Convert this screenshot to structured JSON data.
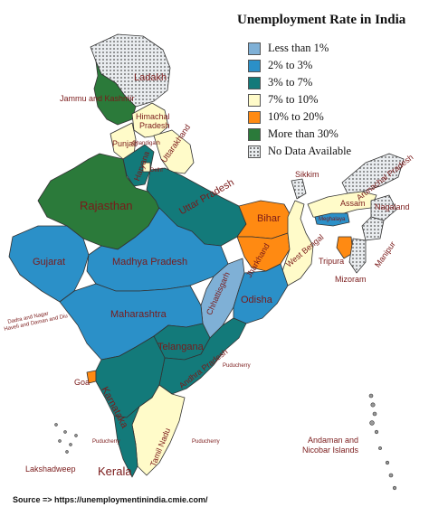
{
  "title": "Unemployment Rate in India",
  "legend": [
    {
      "label": "Less than 1%",
      "color": "#7fb0d6",
      "key": "lt1"
    },
    {
      "label": "2% to 3%",
      "color": "#2b90c8",
      "key": "r2_3"
    },
    {
      "label": "3% to 7%",
      "color": "#137a7a",
      "key": "r3_7"
    },
    {
      "label": "7% to 10%",
      "color": "#fffbc9",
      "key": "r7_10"
    },
    {
      "label": "10% to 20%",
      "color": "#ff8a12",
      "key": "r10_20"
    },
    {
      "label": "More than 30%",
      "color": "#2b7a3a",
      "key": "gt30"
    },
    {
      "label": "No Data Available",
      "color": "#e9ecef",
      "key": "nodata"
    }
  ],
  "labels": {
    "ladakh": "Ladakh",
    "jk": "Jammu and Kashmir",
    "himachal_1": "Himachal",
    "himachal_2": "Pradesh",
    "punjab": "Punjab",
    "chandigarh": "Chandigarh",
    "uttarakhand": "Uttarakhand",
    "haryana": "Haryana",
    "delhi": "Delhi",
    "rajasthan": "Rajasthan",
    "up": "Uttar Pradesh",
    "sikkim": "Sikkim",
    "arunachal": "Arunachal Pradesh",
    "assam": "Assam",
    "nagaland": "Nagaland",
    "meghalaya": "Meghalaya",
    "manipur": "Manipur",
    "tripura": "Tripura",
    "mizoram": "Mizoram",
    "bihar": "Bihar",
    "jharkhand": "Jharkhand",
    "wb": "West Bengal",
    "gujarat": "Gujarat",
    "mp": "Madhya Pradesh",
    "dnh_1": "Dadra and Nagar",
    "dnh_2": "Haveli and Daman and Diu",
    "chhattisgarh": "Chhattisgarh",
    "odisha": "Odisha",
    "maharashtra": "Maharashtra",
    "telangana": "Telangana",
    "ap": "Andhra Pradesh",
    "goa": "Goa",
    "karnataka": "Karnataka",
    "puducherry": "Puducherry",
    "tn": "Tamil Nadu",
    "kerala": "Kerala",
    "lakshadweep": "Lakshadweep",
    "andaman_1": "Andaman and",
    "andaman_2": "Nicobar Islands"
  },
  "states": {
    "ladakh": "nodata",
    "jk": "gt30",
    "himachal": "r7_10",
    "punjab": "r7_10",
    "uttarakhand": "r7_10",
    "haryana": "r3_7",
    "delhi": "r7_10",
    "rajasthan": "gt30",
    "up": "r3_7",
    "bihar": "r10_20",
    "jharkhand": "r10_20",
    "wb": "r7_10",
    "sikkim": "nodata",
    "arunachal": "nodata",
    "assam": "r7_10",
    "nagaland": "nodata",
    "meghalaya": "r2_3",
    "manipur": "nodata",
    "tripura": "r10_20",
    "mizoram": "nodata",
    "gujarat": "r2_3",
    "mp": "r2_3",
    "chhattisgarh": "lt1",
    "odisha": "r2_3",
    "maharashtra": "r2_3",
    "telangana": "r3_7",
    "ap": "r3_7",
    "goa": "r10_20",
    "karnataka": "r3_7",
    "tn": "r7_10",
    "kerala": "r3_7"
  },
  "source": "Source => https://unemploymentinindia.cmie.com/"
}
